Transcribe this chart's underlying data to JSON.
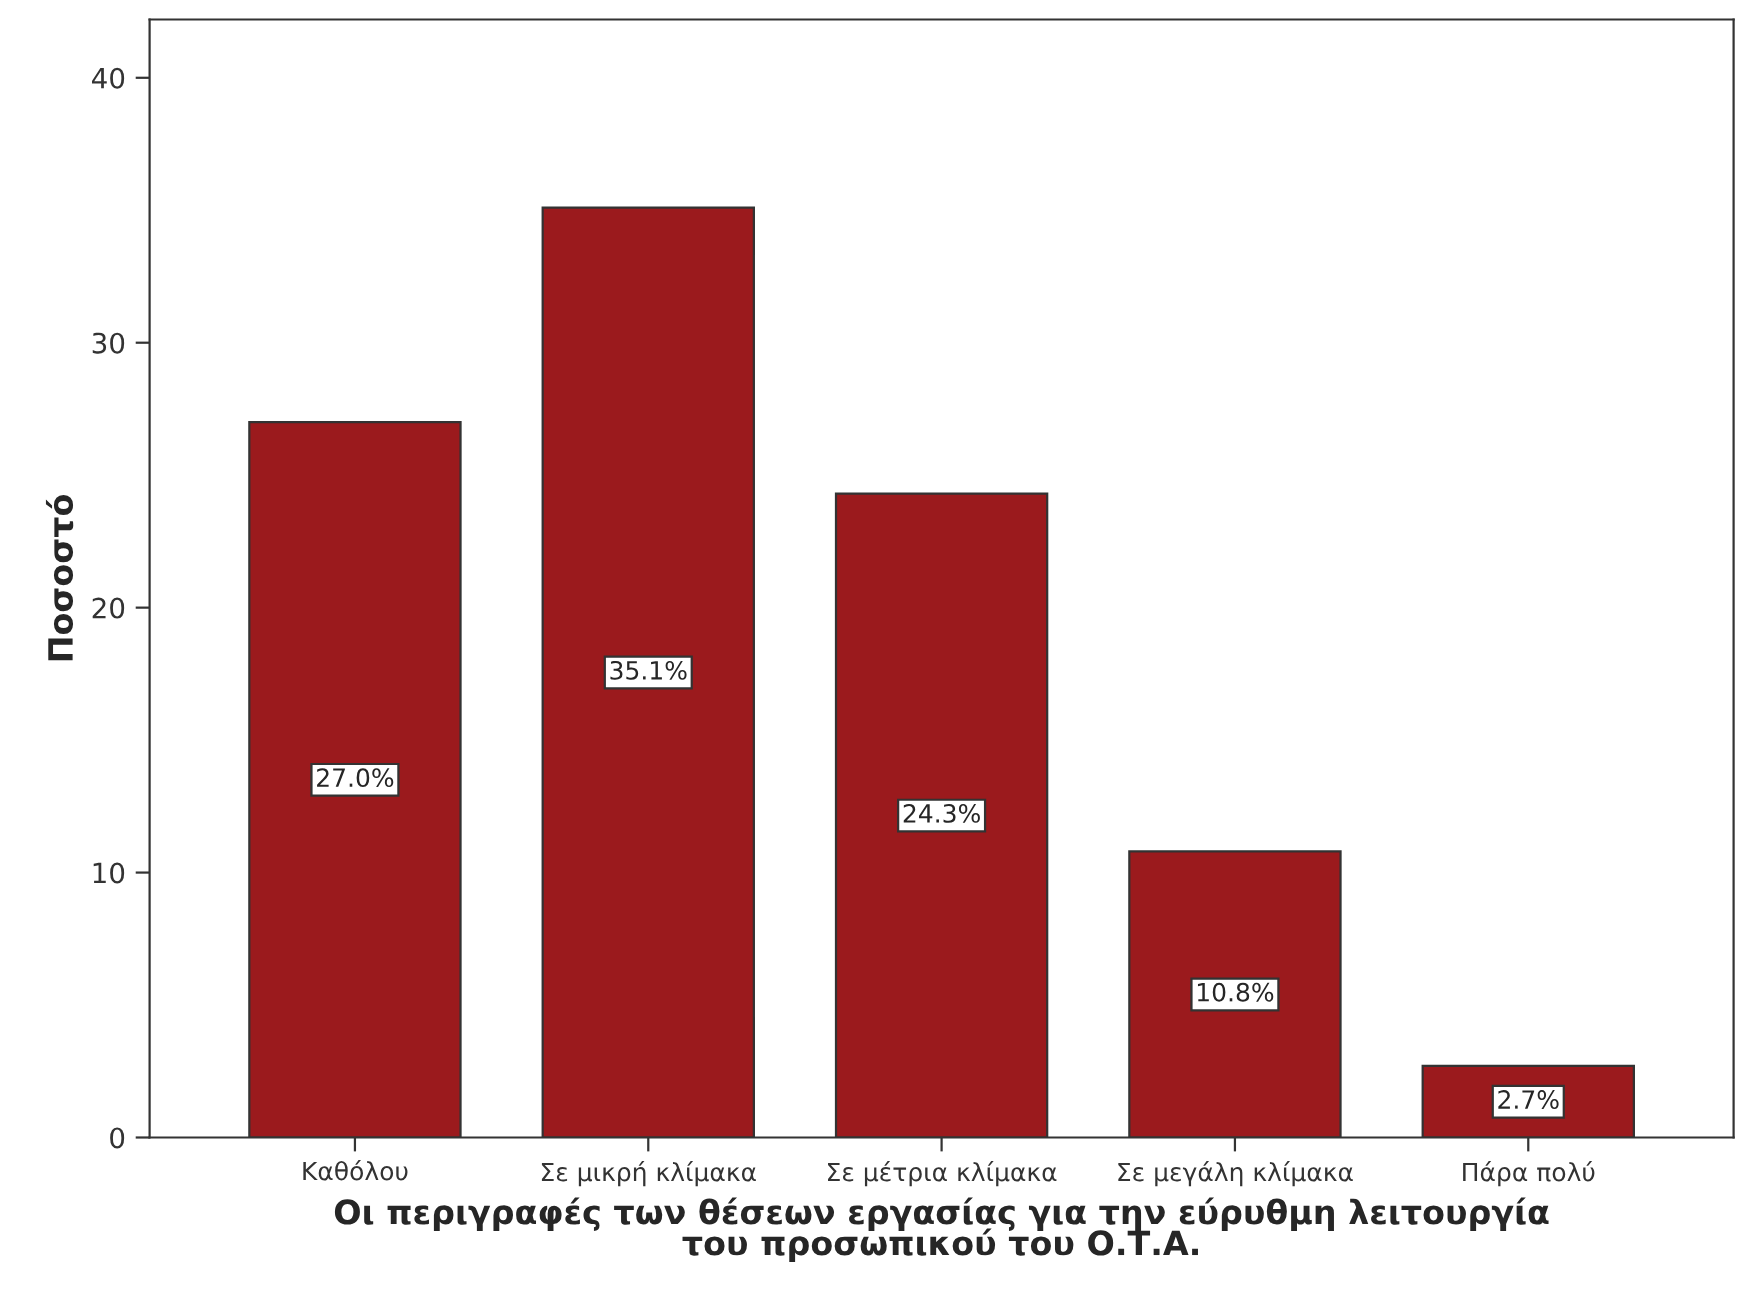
{
  "chart_data": {
    "type": "bar",
    "xlabel": "Οι περιγραφές των θέσεων εργασίας για την εύρυθμη λειτουργία\nτου προσωπικού του Ο.Τ.Α.",
    "ylabel": "Ποσοστό",
    "categories": [
      "Καθόλου",
      "Σε μικρή κλίμακα",
      "Σε μέτρια κλίμακα",
      "Σε μεγάλη κλίμακα",
      "Πάρα πολύ"
    ],
    "values": [
      27.0,
      35.1,
      24.3,
      10.8,
      2.7
    ],
    "value_labels": [
      "27.0%",
      "35.1%",
      "24.3%",
      "10.8%",
      "2.7%"
    ],
    "color": "#9b1a1d",
    "ylim": [
      0,
      42.2
    ],
    "yticks": [
      0,
      10,
      20,
      30,
      40
    ],
    "grid": false
  }
}
